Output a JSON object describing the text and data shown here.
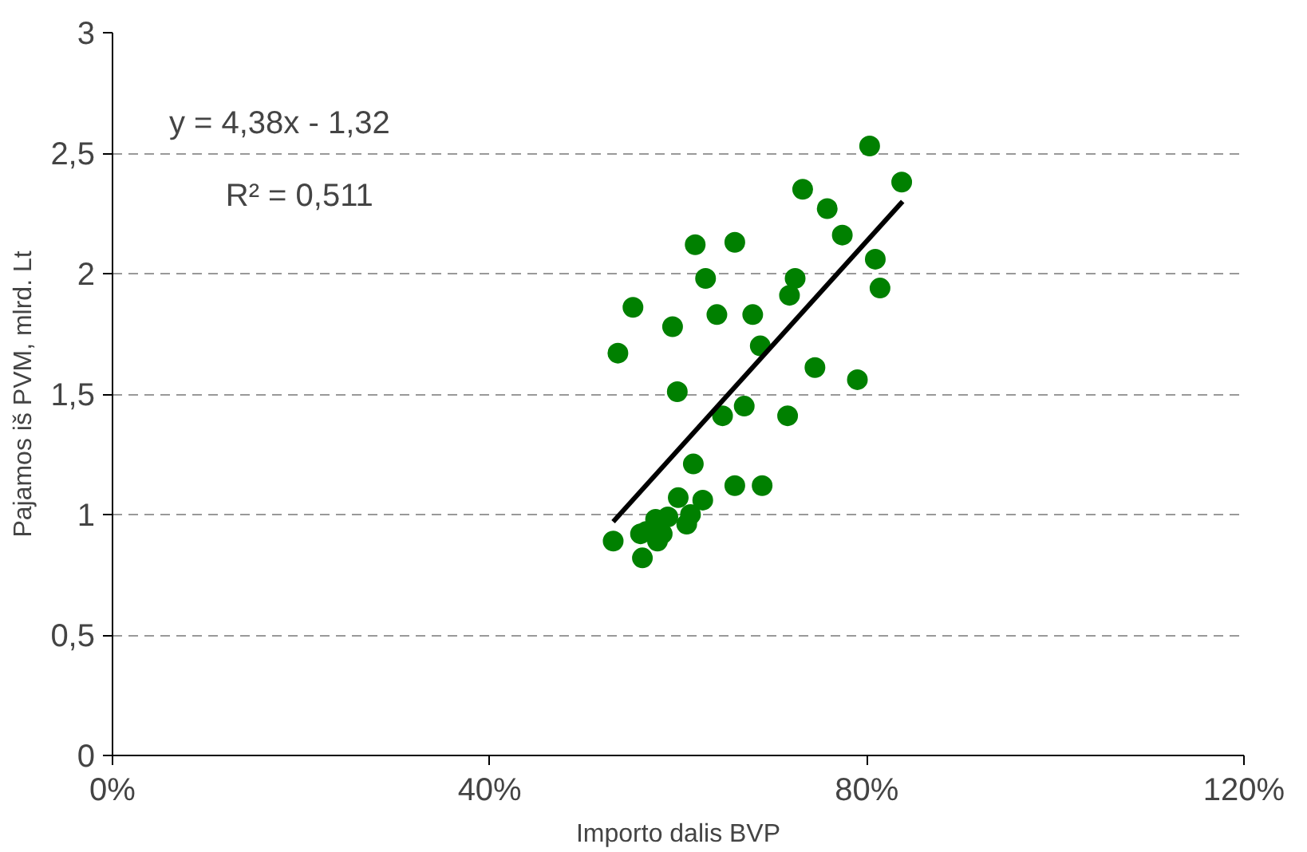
{
  "chart_data": {
    "type": "scatter",
    "xlabel": "Importo dalis BVP",
    "ylabel": "Pajamos iš PVM, mlrd. Lt",
    "annotations": [
      "y = 4,38x - 1,32",
      "R² = 0,511"
    ],
    "xlim": [
      0,
      1.2
    ],
    "ylim": [
      0,
      3
    ],
    "xticks": [
      {
        "value": 0,
        "label": "0%"
      },
      {
        "value": 0.4,
        "label": "40%"
      },
      {
        "value": 0.8,
        "label": "80%"
      },
      {
        "value": 1.2,
        "label": "120%"
      }
    ],
    "yticks": [
      0,
      {
        "value": 0.5,
        "label": "0,5"
      },
      1,
      {
        "value": 1.5,
        "label": "1,5"
      },
      2,
      {
        "value": 2.5,
        "label": "2,5"
      },
      3
    ],
    "grid": "y",
    "marker": "circle",
    "series": [
      {
        "color": "#008000",
        "x": [
          0.531,
          0.562,
          0.56,
          0.566,
          0.576,
          0.589,
          0.583,
          0.578,
          0.6,
          0.609,
          0.613,
          0.626,
          0.616,
          0.66,
          0.689,
          0.647,
          0.67,
          0.716,
          0.599,
          0.536,
          0.594,
          0.552,
          0.641,
          0.679,
          0.687,
          0.745,
          0.79,
          0.618,
          0.66,
          0.629,
          0.724,
          0.718,
          0.732,
          0.758,
          0.774,
          0.803,
          0.837,
          0.809,
          0.814
        ],
        "values": [
          0.89,
          0.82,
          0.92,
          0.93,
          0.98,
          0.99,
          0.92,
          0.89,
          1.07,
          0.96,
          1.0,
          1.06,
          1.21,
          1.12,
          1.12,
          1.41,
          1.45,
          1.41,
          1.51,
          1.67,
          1.78,
          1.86,
          1.83,
          1.83,
          1.7,
          1.61,
          1.56,
          2.12,
          2.13,
          1.98,
          1.98,
          1.91,
          2.35,
          2.27,
          2.16,
          2.53,
          2.38,
          2.06,
          1.94
        ]
      },
      {
        "type": "line",
        "color": "#000000",
        "line_style": "solid",
        "marker": "none",
        "x": [
          0.531,
          0.838
        ],
        "values": [
          0.97,
          2.3
        ]
      }
    ]
  }
}
